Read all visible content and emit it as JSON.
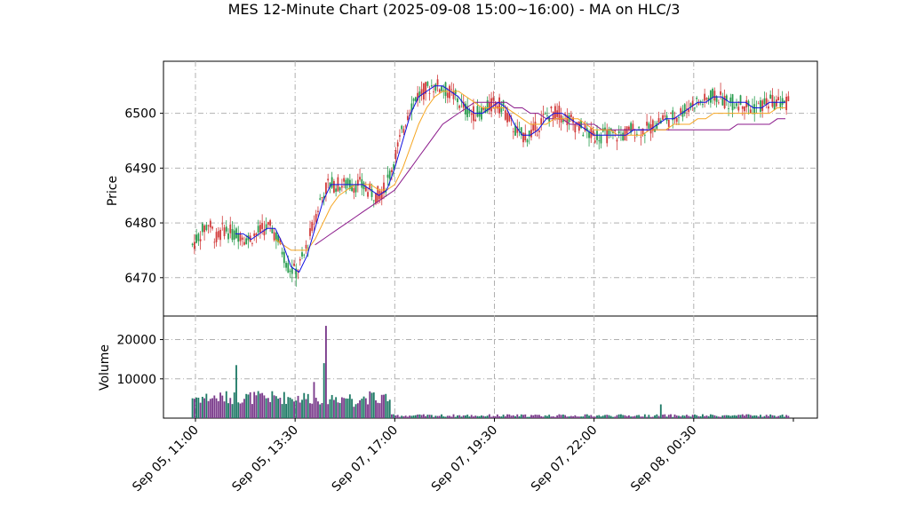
{
  "chart_data": {
    "type": "candlestick",
    "title": "MES 12-Minute Chart (2025-09-08 15:00~16:00) - MA on HLC/3",
    "price_panel": {
      "ylabel": "Price",
      "ylim": [
        6463,
        6509.5
      ],
      "yticks": [
        6470,
        6480,
        6490,
        6500
      ],
      "grid": true
    },
    "volume_panel": {
      "ylabel": "Volume",
      "ylim": [
        0,
        26000
      ],
      "yticks": [
        10000,
        20000
      ],
      "grid": true
    },
    "x_ticks": [
      "Sep 05, 11:00",
      "Sep 05, 13:30",
      "Sep 07, 17:00",
      "Sep 07, 19:30",
      "Sep 07, 22:00",
      "Sep 08, 00:30"
    ],
    "x_tick_index": [
      0,
      12.5,
      25,
      37.5,
      50,
      62.5
    ],
    "bar_count": 75,
    "colors": {
      "up": "#2a9d4f",
      "down": "#d23b3b",
      "ma_fast": "#1010e0",
      "ma_mid": "#f5a623",
      "ma_slow": "#8b1a8b",
      "vol_up": "#1f7a66",
      "vol_down": "#7a3b8b"
    },
    "ma_fast": [
      null,
      null,
      null,
      null,
      null,
      6478,
      6478,
      6477,
      6478,
      6479,
      6479,
      6476,
      6472,
      6471,
      6474,
      6479,
      6484,
      6487,
      6487,
      6487,
      6487,
      6487,
      6486,
      6485,
      6486,
      6490,
      6495,
      6500,
      6503,
      6504,
      6505,
      6505,
      6504,
      6503,
      6501,
      6500,
      6500,
      6501,
      6502,
      6501,
      6498,
      6496,
      6496,
      6497,
      6499,
      6500,
      6500,
      6499,
      6498,
      6497,
      6496,
      6496,
      6496,
      6496,
      6496,
      6497,
      6497,
      6497,
      6498,
      6499,
      6499,
      6500,
      6501,
      6502,
      6502,
      6503,
      6503,
      6502,
      6502,
      6502,
      6501,
      6501,
      6502,
      6502,
      6502
    ],
    "ma_mid": [
      null,
      null,
      null,
      null,
      null,
      null,
      null,
      null,
      null,
      null,
      6477,
      6476,
      6475,
      6475,
      6475,
      6477,
      6480,
      6483,
      6485,
      6486,
      6487,
      6487,
      6487,
      6486,
      6486,
      6487,
      6490,
      6494,
      6498,
      6501,
      6503,
      6504,
      6504,
      6504,
      6503,
      6502,
      6501,
      6501,
      6501,
      6501,
      6500,
      6499,
      6498,
      6498,
      6498,
      6499,
      6499,
      6499,
      6499,
      6498,
      6497,
      6497,
      6497,
      6496,
      6496,
      6496,
      6496,
      6497,
      6497,
      6497,
      6498,
      6498,
      6498,
      6499,
      6499,
      6500,
      6500,
      6500,
      6500,
      6500,
      6500,
      6500,
      6500,
      6501,
      6501
    ],
    "ma_slow": [
      null,
      null,
      null,
      null,
      null,
      null,
      null,
      null,
      null,
      null,
      null,
      null,
      null,
      null,
      null,
      6476,
      6477,
      6478,
      6479,
      6480,
      6481,
      6482,
      6483,
      6484,
      6485,
      6486,
      6488,
      6490,
      6492,
      6494,
      6496,
      6498,
      6499,
      6500,
      6501,
      6502,
      6502,
      6502,
      6502,
      6502,
      6501,
      6501,
      6500,
      6500,
      6499,
      6499,
      6499,
      6498,
      6498,
      6498,
      6498,
      6497,
      6497,
      6497,
      6497,
      6497,
      6497,
      6497,
      6497,
      6497,
      6497,
      6497,
      6497,
      6497,
      6497,
      6497,
      6497,
      6497,
      6498,
      6498,
      6498,
      6498,
      6498,
      6499,
      6499
    ]
  }
}
